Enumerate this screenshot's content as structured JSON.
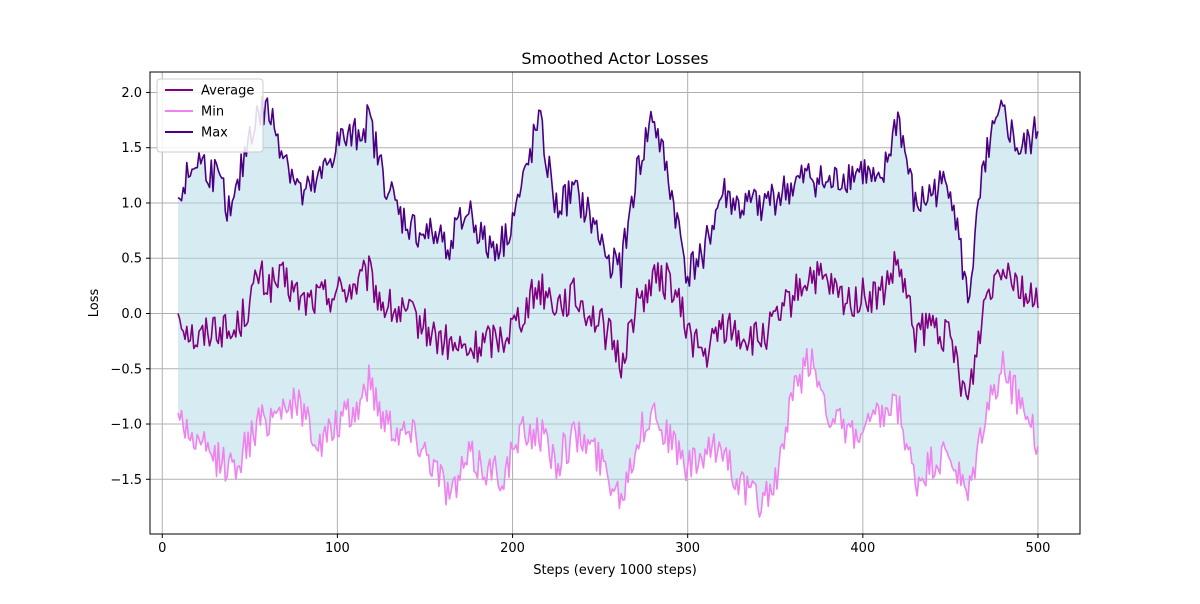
{
  "chart_data": {
    "type": "line",
    "title": "Smoothed Actor Losses",
    "xlabel": "Steps (every 1000 steps)",
    "ylabel": "Loss",
    "xlim": [
      -7,
      524
    ],
    "ylim": [
      -1.995,
      2.185
    ],
    "xticks": [
      0,
      100,
      200,
      300,
      400,
      500
    ],
    "yticks": [
      -1.5,
      -1.0,
      -0.5,
      0.0,
      0.5,
      1.0,
      1.5,
      2.0
    ],
    "xtick_labels": [
      "0",
      "100",
      "200",
      "300",
      "400",
      "500"
    ],
    "ytick_labels": [
      "−1.5",
      "−1.0",
      "−0.5",
      "0.0",
      "0.5",
      "1.0",
      "1.5",
      "2.0"
    ],
    "grid": true,
    "legend_position": "top-left",
    "fill_between": {
      "lower": "Min",
      "upper": "Max",
      "color": "#add8e6",
      "opacity": 0.5
    },
    "series": [
      {
        "name": "Average",
        "color": "#800080",
        "x": [
          9,
          20,
          30,
          40,
          50,
          55,
          60,
          70,
          80,
          90,
          100,
          110,
          118,
          125,
          135,
          145,
          155,
          165,
          175,
          185,
          195,
          205,
          215,
          225,
          235,
          245,
          255,
          262,
          270,
          280,
          290,
          300,
          310,
          320,
          330,
          340,
          350,
          360,
          370,
          380,
          390,
          400,
          410,
          420,
          430,
          440,
          450,
          460,
          470,
          480,
          490,
          500
        ],
        "values": [
          0.0,
          -0.25,
          -0.1,
          -0.2,
          0.1,
          0.35,
          0.25,
          0.3,
          0.1,
          0.15,
          0.2,
          0.25,
          0.35,
          0.1,
          0.0,
          -0.05,
          -0.2,
          -0.3,
          -0.35,
          -0.25,
          -0.2,
          0.0,
          0.25,
          0.1,
          0.15,
          0.0,
          -0.2,
          -0.45,
          0.05,
          0.3,
          0.3,
          -0.15,
          -0.4,
          -0.1,
          -0.2,
          -0.25,
          -0.1,
          0.15,
          0.35,
          0.25,
          0.1,
          0.15,
          0.15,
          0.45,
          -0.2,
          -0.1,
          -0.25,
          -0.8,
          0.15,
          0.5,
          0.25,
          0.05
        ]
      },
      {
        "name": "Min",
        "color": "#ee82ee",
        "x": [
          9,
          20,
          30,
          40,
          50,
          55,
          60,
          70,
          80,
          90,
          100,
          110,
          118,
          125,
          135,
          145,
          155,
          165,
          175,
          185,
          195,
          205,
          215,
          225,
          235,
          245,
          255,
          262,
          270,
          280,
          290,
          300,
          310,
          320,
          330,
          340,
          350,
          360,
          370,
          380,
          390,
          400,
          410,
          420,
          430,
          440,
          450,
          460,
          470,
          480,
          490,
          500
        ],
        "values": [
          -0.9,
          -1.2,
          -1.3,
          -1.4,
          -1.15,
          -1.0,
          -0.95,
          -0.8,
          -0.85,
          -1.2,
          -1.0,
          -0.9,
          -0.6,
          -0.9,
          -1.05,
          -1.1,
          -1.35,
          -1.65,
          -1.3,
          -1.4,
          -1.45,
          -1.1,
          -1.05,
          -1.35,
          -1.1,
          -1.2,
          -1.45,
          -1.65,
          -1.2,
          -0.85,
          -1.15,
          -1.4,
          -1.3,
          -1.2,
          -1.55,
          -1.7,
          -1.55,
          -0.75,
          -0.4,
          -0.85,
          -1.1,
          -1.1,
          -0.95,
          -0.85,
          -1.55,
          -1.35,
          -1.3,
          -1.7,
          -0.9,
          -0.5,
          -0.8,
          -1.2
        ]
      },
      {
        "name": "Max",
        "color": "#4b0082",
        "x": [
          9,
          20,
          30,
          40,
          50,
          55,
          60,
          70,
          80,
          90,
          100,
          110,
          118,
          125,
          135,
          145,
          155,
          165,
          175,
          185,
          195,
          205,
          215,
          225,
          235,
          245,
          255,
          262,
          270,
          280,
          290,
          300,
          310,
          320,
          330,
          340,
          350,
          360,
          370,
          380,
          390,
          400,
          410,
          420,
          430,
          440,
          450,
          460,
          470,
          480,
          490,
          500
        ],
        "values": [
          1.05,
          1.4,
          1.25,
          0.9,
          1.65,
          1.8,
          1.85,
          1.45,
          1.05,
          1.2,
          1.55,
          1.6,
          1.75,
          1.3,
          0.9,
          0.75,
          0.7,
          0.65,
          0.95,
          0.6,
          0.65,
          1.1,
          1.75,
          0.95,
          1.1,
          0.85,
          0.5,
          0.4,
          1.2,
          1.8,
          1.15,
          0.35,
          0.6,
          1.1,
          0.95,
          1.0,
          1.05,
          1.15,
          1.25,
          1.15,
          1.25,
          1.3,
          1.1,
          1.8,
          0.95,
          1.1,
          1.2,
          0.1,
          1.45,
          1.8,
          1.45,
          1.65
        ]
      }
    ]
  }
}
